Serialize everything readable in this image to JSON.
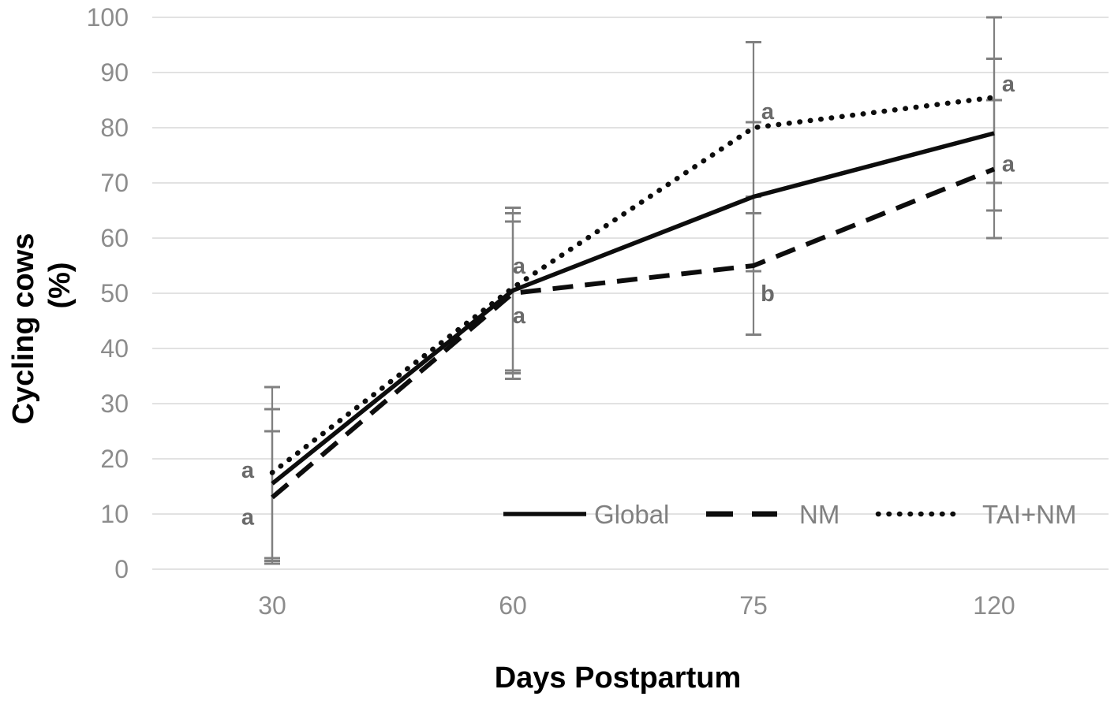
{
  "figure": {
    "background": "#ffffff"
  },
  "chart_data": {
    "type": "line",
    "title": "",
    "xlabel": "Days Postpartum",
    "ylabel_lines": [
      "Cycling cows",
      "(%)"
    ],
    "categories": [
      "30",
      "60",
      "75",
      "120"
    ],
    "y_ticks": [
      0,
      10,
      20,
      30,
      40,
      50,
      60,
      70,
      80,
      90,
      100
    ],
    "ylim": [
      0,
      100
    ],
    "grid": "horizontal",
    "legend_position": "inside-bottom-right",
    "series": [
      {
        "name": "Global",
        "style": "solid",
        "values": [
          15.5,
          50.5,
          67.5,
          79
        ],
        "err_low": [
          1.5,
          36,
          54,
          65
        ],
        "err_high": [
          29,
          64.5,
          81,
          92.5
        ]
      },
      {
        "name": "NM",
        "style": "dashed",
        "values": [
          13,
          50,
          55,
          72.5
        ],
        "err_low": [
          1,
          34.5,
          42.5,
          60
        ],
        "err_high": [
          25,
          63,
          67.5,
          85
        ]
      },
      {
        "name": "TAI+NM",
        "style": "dotted",
        "values": [
          17.5,
          51,
          80,
          85.5
        ],
        "err_low": [
          2,
          35.5,
          64.5,
          70
        ],
        "err_high": [
          33,
          65.5,
          95.5,
          100
        ]
      }
    ],
    "annotations": [
      {
        "x_index": 0,
        "value": 18,
        "label": "a",
        "side": "left"
      },
      {
        "x_index": 0,
        "value": 9.5,
        "label": "a",
        "side": "left"
      },
      {
        "x_index": 1,
        "value": 55,
        "label": "a",
        "side": "near-right"
      },
      {
        "x_index": 1,
        "value": 46,
        "label": "a",
        "side": "near-right"
      },
      {
        "x_index": 2,
        "value": 83,
        "label": "a",
        "side": "right"
      },
      {
        "x_index": 2,
        "value": 50,
        "label": "b",
        "side": "right"
      },
      {
        "x_index": 3,
        "value": 88,
        "label": "a",
        "side": "right"
      },
      {
        "x_index": 3,
        "value": 73.5,
        "label": "a",
        "side": "right"
      }
    ],
    "colors": {
      "line": "#0d0d0d",
      "error_bar": "#808080",
      "grid": "#d9d9d9",
      "tick_label": "#8c8c8c",
      "legend_text": "#808080",
      "sig_letter": "#6a6a6a",
      "axis_title": "#000000"
    }
  }
}
